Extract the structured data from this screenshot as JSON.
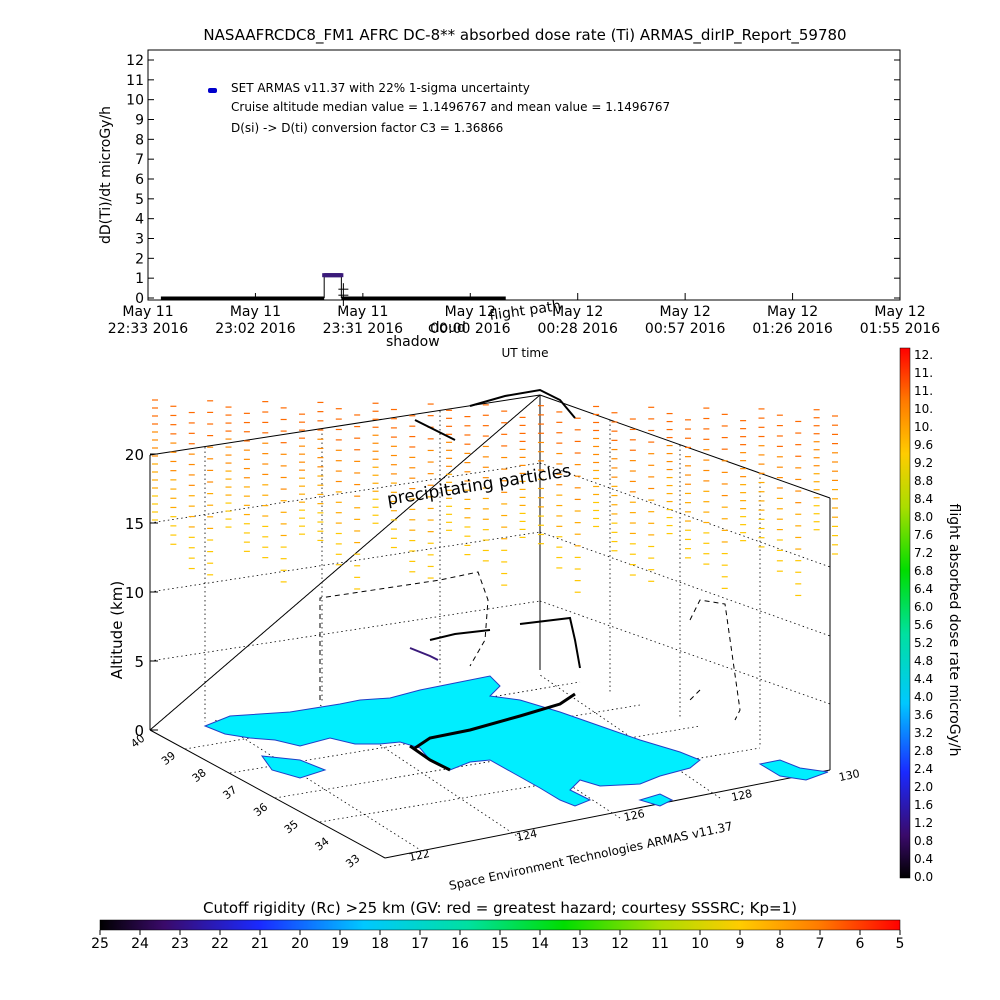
{
  "colors": {
    "background": "#ffffff",
    "axis": "#000000",
    "dose_marker": "#3a1a7a",
    "legend_marker": "#0000cc",
    "land": "#00eeff",
    "coast": "#1f3fc8"
  },
  "chart_data": [
    {
      "type": "scatter",
      "title": "NASAAFRCDC8_FM1 AFRC DC-8** absorbed dose rate (Ti) ARMAS_dirIP_Report_59780",
      "ylabel": "dD(Ti)/dt microGy/h",
      "xlabel": "UT time",
      "ylim": [
        0,
        12
      ],
      "yticks": [
        "0",
        "1",
        "2",
        "3",
        "4",
        "5",
        "6",
        "7",
        "8",
        "9",
        "10",
        "11",
        "12"
      ],
      "xticks": [
        {
          "top": "May 11",
          "bottom": "22:33 2016"
        },
        {
          "top": "May 11",
          "bottom": "23:02 2016"
        },
        {
          "top": "May 11",
          "bottom": "23:31 2016"
        },
        {
          "top": "May 12",
          "bottom": "00:00 2016"
        },
        {
          "top": "May 12",
          "bottom": "00:28 2016"
        },
        {
          "top": "May 12",
          "bottom": "00:57 2016"
        },
        {
          "top": "May 12",
          "bottom": "01:26 2016"
        },
        {
          "top": "May 12",
          "bottom": "01:55 2016"
        }
      ],
      "legend": {
        "series": "SET ARMAS v11.37 with 22% 1-sigma uncertainty",
        "note1": "Cruise altitude median value = 1.1496767 and mean value = 1.1496767",
        "note2": "D(si) -> D(ti) conversion factor C3 = 1.36866"
      },
      "overlay_labels": {
        "shadow": "shadow",
        "flight_path": "flight path",
        "cloud": "cloud"
      },
      "series": [
        {
          "name": "SET ARMAS v11.37 with 22% 1-sigma uncertainty",
          "segments": [
            {
              "x_start": 0.12,
              "x_end": 1.64,
              "y": 0.0
            },
            {
              "x_start": 1.64,
              "x_end": 1.8,
              "y": 1.15
            },
            {
              "x_start": 1.8,
              "x_end": 3.33,
              "y": 0.0
            }
          ]
        }
      ]
    },
    {
      "type": "scatter",
      "subtype": "3d-flight-track",
      "zlabel": "Altitude (km)",
      "zticks": [
        "0",
        "5",
        "10",
        "15",
        "20"
      ],
      "lat_ticks": [
        "33",
        "34",
        "35",
        "36",
        "37",
        "38",
        "39",
        "40"
      ],
      "lon_ticks": [
        "122",
        "124",
        "126",
        "128",
        "130"
      ],
      "annotation": "precipitating particles",
      "credit": "Space Environment Technologies ARMAS v11.37"
    },
    {
      "type": "heatmap",
      "role": "colorbar",
      "label": "flight absorbed dose rate microGy/h",
      "ticks": [
        "12.",
        "11.",
        "11.",
        "10.",
        "10.",
        "9.6",
        "9.2",
        "8.8",
        "8.4",
        "8.0",
        "7.6",
        "7.2",
        "6.8",
        "6.4",
        "6.0",
        "5.6",
        "5.2",
        "4.8",
        "4.4",
        "4.0",
        "3.6",
        "3.2",
        "2.8",
        "2.4",
        "2.0",
        "1.6",
        "1.2",
        "0.8",
        "0.4",
        "0.0"
      ]
    },
    {
      "type": "heatmap",
      "role": "colorbar",
      "label": "Cutoff rigidity (Rc) >25 km (GV: red = greatest hazard; courtesy SSSRC; Kp=1)",
      "ticks": [
        "25",
        "24",
        "23",
        "22",
        "21",
        "20",
        "19",
        "18",
        "17",
        "16",
        "15",
        "14",
        "13",
        "12",
        "11",
        "10",
        "9",
        "8",
        "7",
        "6",
        "5"
      ]
    }
  ]
}
